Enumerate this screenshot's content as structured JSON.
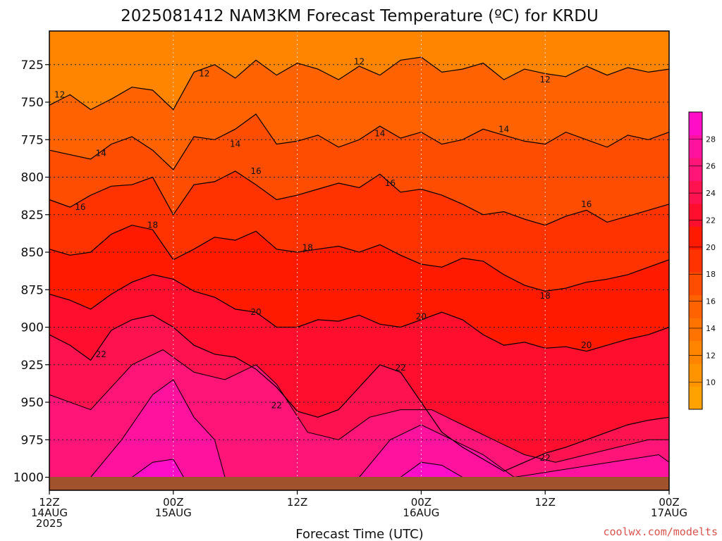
{
  "chart_data": {
    "type": "heatmap",
    "title": "2025081412 NAM3KM Forecast Temperature (ºC) for KRDU",
    "xlabel": "Forecast Time (UTC)",
    "ylabel": "",
    "credit": "coolwx.com/modelts",
    "x_ticks": [
      {
        "hour": 0,
        "line1": "12Z",
        "line2": "14AUG",
        "line3": "2025"
      },
      {
        "hour": 12,
        "line1": "00Z",
        "line2": "15AUG",
        "line3": ""
      },
      {
        "hour": 24,
        "line1": "12Z",
        "line2": "",
        "line3": ""
      },
      {
        "hour": 36,
        "line1": "00Z",
        "line2": "16AUG",
        "line3": ""
      },
      {
        "hour": 48,
        "line1": "12Z",
        "line2": "",
        "line3": ""
      },
      {
        "hour": 60,
        "line1": "00Z",
        "line2": "17AUG",
        "line3": ""
      }
    ],
    "xlim": [
      0,
      60
    ],
    "y_ticks": [
      725,
      750,
      775,
      800,
      825,
      850,
      875,
      900,
      925,
      950,
      975,
      1000
    ],
    "ylim": [
      1000,
      700
    ],
    "y_scale": "pressure (hPa), reversed",
    "grid": true,
    "legend": "colorbar-right",
    "colorbar": {
      "min": 8,
      "max": 30,
      "labels": [
        10,
        12,
        14,
        16,
        18,
        20,
        22,
        24,
        26,
        28
      ],
      "colors": [
        "#ffa200",
        "#ff9300",
        "#ff8400",
        "#ff7300",
        "#ff6200",
        "#ff4d00",
        "#ff3300",
        "#ff1a00",
        "#ff0f2d",
        "#ff1250",
        "#ff1577",
        "#ff129e",
        "#ff0dc7"
      ]
    },
    "isotherms": [
      {
        "value": 12,
        "hours": [
          0,
          2,
          4,
          6,
          8,
          10,
          12,
          14,
          16,
          18,
          20,
          22,
          24,
          26,
          28,
          30,
          32,
          34,
          36,
          38,
          40,
          42,
          44,
          46,
          48,
          50,
          52,
          54,
          56,
          58,
          60
        ],
        "pressure": [
          752,
          745,
          755,
          748,
          740,
          742,
          755,
          730,
          725,
          734,
          722,
          732,
          724,
          728,
          735,
          726,
          732,
          722,
          720,
          730,
          728,
          724,
          735,
          728,
          731,
          733,
          726,
          732,
          727,
          730,
          728
        ]
      },
      {
        "value": 14,
        "hours": [
          0,
          2,
          4,
          6,
          8,
          10,
          12,
          14,
          16,
          18,
          20,
          22,
          24,
          26,
          28,
          30,
          32,
          34,
          36,
          38,
          40,
          42,
          44,
          46,
          48,
          50,
          52,
          54,
          56,
          58,
          60
        ],
        "pressure": [
          782,
          785,
          788,
          778,
          773,
          782,
          795,
          773,
          775,
          768,
          758,
          778,
          776,
          772,
          780,
          775,
          766,
          774,
          770,
          778,
          775,
          768,
          772,
          776,
          778,
          770,
          775,
          780,
          772,
          775,
          770
        ]
      },
      {
        "value": 16,
        "hours": [
          0,
          2,
          4,
          6,
          8,
          10,
          12,
          14,
          16,
          18,
          20,
          22,
          24,
          26,
          28,
          30,
          32,
          34,
          36,
          38,
          40,
          42,
          44,
          46,
          48,
          50,
          52,
          54,
          56,
          58,
          60
        ],
        "pressure": [
          815,
          820,
          812,
          806,
          805,
          800,
          825,
          805,
          803,
          796,
          805,
          815,
          812,
          808,
          804,
          807,
          798,
          810,
          808,
          812,
          818,
          825,
          823,
          828,
          832,
          826,
          822,
          830,
          826,
          822,
          818
        ]
      },
      {
        "value": 18,
        "hours": [
          0,
          2,
          4,
          6,
          8,
          10,
          12,
          14,
          16,
          18,
          20,
          22,
          24,
          26,
          28,
          30,
          32,
          34,
          36,
          38,
          40,
          42,
          44,
          46,
          48,
          50,
          52,
          54,
          56,
          58,
          60
        ],
        "pressure": [
          848,
          852,
          850,
          838,
          832,
          835,
          855,
          848,
          840,
          842,
          836,
          848,
          850,
          848,
          846,
          850,
          845,
          852,
          858,
          860,
          854,
          856,
          865,
          872,
          876,
          874,
          870,
          868,
          865,
          860,
          855
        ]
      },
      {
        "value": 20,
        "hours": [
          0,
          2,
          4,
          6,
          8,
          10,
          12,
          14,
          16,
          18,
          20,
          22,
          24,
          26,
          28,
          30,
          32,
          34,
          36,
          38,
          40,
          42,
          44,
          46,
          48,
          50,
          52,
          54,
          56,
          58,
          60
        ],
        "pressure": [
          878,
          882,
          888,
          878,
          870,
          865,
          868,
          876,
          880,
          888,
          890,
          900,
          900,
          895,
          896,
          892,
          898,
          900,
          895,
          890,
          895,
          905,
          912,
          910,
          914,
          913,
          916,
          912,
          908,
          905,
          900
        ]
      },
      {
        "value": 22,
        "hours": [
          0,
          2,
          4,
          6,
          8,
          10,
          12,
          14,
          16,
          18,
          20,
          22,
          24,
          26,
          28,
          30,
          32,
          34,
          36,
          38,
          40,
          42,
          44,
          46,
          48,
          50,
          52,
          54,
          56,
          58,
          60
        ],
        "pressure": [
          905,
          912,
          922,
          902,
          895,
          892,
          900,
          912,
          918,
          920,
          928,
          940,
          956,
          960,
          955,
          940,
          925,
          930,
          950,
          970,
          980,
          988,
          996,
          990,
          984,
          980,
          975,
          970,
          965,
          962,
          960
        ]
      }
    ],
    "isotherm_label_positions": [
      {
        "text": "12",
        "hour": 1.0,
        "pressure": 745
      },
      {
        "text": "12",
        "hour": 15.0,
        "pressure": 731
      },
      {
        "text": "12",
        "hour": 30.0,
        "pressure": 723
      },
      {
        "text": "12",
        "hour": 48.0,
        "pressure": 735
      },
      {
        "text": "14",
        "hour": 5.0,
        "pressure": 784
      },
      {
        "text": "14",
        "hour": 18.0,
        "pressure": 778
      },
      {
        "text": "14",
        "hour": 32.0,
        "pressure": 771
      },
      {
        "text": "14",
        "hour": 44.0,
        "pressure": 768
      },
      {
        "text": "16",
        "hour": 3.0,
        "pressure": 820
      },
      {
        "text": "16",
        "hour": 20.0,
        "pressure": 796
      },
      {
        "text": "16",
        "hour": 33.0,
        "pressure": 804
      },
      {
        "text": "16",
        "hour": 52.0,
        "pressure": 818
      },
      {
        "text": "18",
        "hour": 10.0,
        "pressure": 832
      },
      {
        "text": "18",
        "hour": 25.0,
        "pressure": 847
      },
      {
        "text": "18",
        "hour": 48.0,
        "pressure": 879
      },
      {
        "text": "20",
        "hour": 20.0,
        "pressure": 890
      },
      {
        "text": "20",
        "hour": 36.0,
        "pressure": 893
      },
      {
        "text": "20",
        "hour": 52.0,
        "pressure": 912
      },
      {
        "text": "22",
        "hour": 5.0,
        "pressure": 918
      },
      {
        "text": "22",
        "hour": 22.0,
        "pressure": 952
      },
      {
        "text": "22",
        "hour": 34.0,
        "pressure": 927
      },
      {
        "text": "22",
        "hour": 48.0,
        "pressure": 987
      }
    ],
    "warm_regions": [
      {
        "min_value": 24,
        "hours": [
          0,
          4,
          8,
          11,
          14,
          17,
          20,
          22,
          25,
          28,
          31,
          34,
          37,
          40,
          43,
          46,
          49,
          52,
          55,
          58,
          60
        ],
        "pressure": [
          945,
          955,
          925,
          915,
          930,
          935,
          925,
          938,
          970,
          975,
          960,
          955,
          955,
          965,
          975,
          985,
          990,
          985,
          980,
          975,
          975
        ]
      },
      {
        "min_value": 26,
        "hours": [
          4,
          7,
          10,
          12,
          14,
          16,
          17,
          30,
          33,
          36,
          39,
          42,
          45,
          59,
          60
        ],
        "pressure": [
          1000,
          975,
          945,
          935,
          960,
          975,
          1000,
          1000,
          975,
          965,
          975,
          985,
          1000,
          985,
          990
        ]
      },
      {
        "min_value": 28,
        "hours": [
          8,
          10,
          12,
          13,
          34,
          36,
          38,
          40
        ],
        "pressure": [
          1000,
          990,
          988,
          1000,
          1000,
          990,
          992,
          1000
        ]
      }
    ]
  }
}
